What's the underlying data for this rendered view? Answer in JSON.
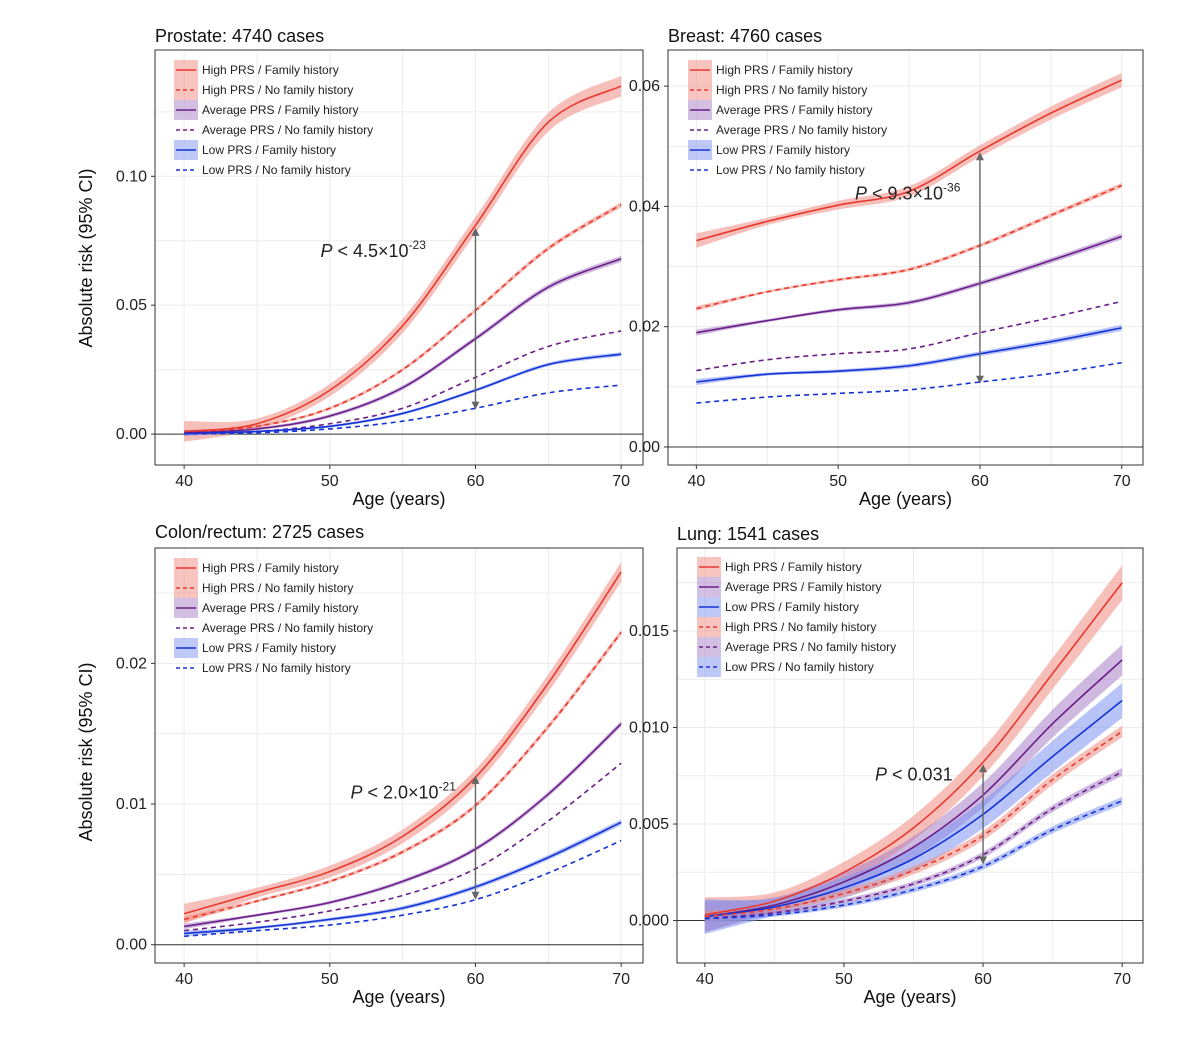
{
  "figure": {
    "ylabel": "Absolute risk (95% CI)",
    "xlabel": "Age (years)"
  },
  "colors": {
    "high": "#e8392f",
    "average": "#6b1e87",
    "low": "#1433d6",
    "high_band": "#f08a80",
    "average_band": "#a780c6",
    "low_band": "#7d94f2",
    "arrow": "#666666",
    "grid": "#ececec"
  },
  "chart_data": [
    {
      "type": "line",
      "title": "Prostate: 4740 cases",
      "xlabel": "Age (years)",
      "ylabel": "Absolute risk (95% CI)",
      "xlim": [
        38,
        71.5
      ],
      "ylim": [
        -0.012,
        0.149
      ],
      "xticks": [
        "40",
        "50",
        "60",
        "70"
      ],
      "yticks": [
        "0.00",
        "0.05",
        "0.10"
      ],
      "legend": [
        "High PRS / Family history",
        "High PRS / No family history",
        "Average PRS / Family history",
        "Average PRS / No family history",
        "Low PRS / Family history",
        "Low PRS / No family history"
      ],
      "annotation": {
        "text": "P < 4.5×10",
        "exp": "-23",
        "x": 60,
        "y_top": 0.08,
        "y_bottom": 0.0095
      },
      "x": [
        40,
        45,
        50,
        55,
        60,
        65,
        70
      ],
      "series": [
        {
          "name": "High PRS / Family history",
          "group": "high",
          "dash": false,
          "band": 0.004,
          "values": [
            0.001,
            0.004,
            0.017,
            0.042,
            0.081,
            0.121,
            0.135
          ]
        },
        {
          "name": "High PRS / No family history",
          "group": "high",
          "dash": true,
          "band": 0.001,
          "values": [
            0.0005,
            0.003,
            0.01,
            0.025,
            0.048,
            0.072,
            0.089
          ]
        },
        {
          "name": "Average PRS / Family history",
          "group": "average",
          "dash": false,
          "band": 0.0012,
          "values": [
            0.0004,
            0.002,
            0.007,
            0.018,
            0.037,
            0.057,
            0.068
          ]
        },
        {
          "name": "Average PRS / No family history",
          "group": "average",
          "dash": true,
          "band": 0,
          "values": [
            0.0003,
            0.001,
            0.004,
            0.01,
            0.022,
            0.034,
            0.04
          ]
        },
        {
          "name": "Low PRS / Family history",
          "group": "low",
          "dash": false,
          "band": 0.0008,
          "values": [
            0.0002,
            0.001,
            0.003,
            0.008,
            0.017,
            0.027,
            0.031
          ]
        },
        {
          "name": "Low PRS / No family history",
          "group": "low",
          "dash": true,
          "band": 0,
          "values": [
            0.0001,
            0.0005,
            0.002,
            0.005,
            0.01,
            0.016,
            0.019
          ]
        }
      ]
    },
    {
      "type": "line",
      "title": "Breast: 4760 cases",
      "xlabel": "Age (years)",
      "ylabel": "",
      "xlim": [
        38,
        71.5
      ],
      "ylim": [
        -0.003,
        0.066
      ],
      "xticks": [
        "40",
        "50",
        "60",
        "70"
      ],
      "yticks": [
        "0.00",
        "0.02",
        "0.04",
        "0.06"
      ],
      "legend": [
        "High PRS / Family history",
        "High PRS / No family history",
        "Average PRS / Family history",
        "Average PRS / No family history",
        "Low PRS / Family history",
        "Low PRS / No family history"
      ],
      "annotation": {
        "text": "P < 9.3×10",
        "exp": "-36",
        "x": 60,
        "y_top": 0.049,
        "y_bottom": 0.0105
      },
      "x": [
        40,
        45,
        50,
        55,
        60,
        65,
        70
      ],
      "series": [
        {
          "name": "High PRS / Family history",
          "group": "high",
          "dash": false,
          "band": 0.0012,
          "values": [
            0.0343,
            0.0375,
            0.0402,
            0.0425,
            0.0492,
            0.0555,
            0.061
          ]
        },
        {
          "name": "High PRS / No family history",
          "group": "high",
          "dash": true,
          "band": 0.0004,
          "values": [
            0.023,
            0.0258,
            0.0278,
            0.0295,
            0.0335,
            0.0385,
            0.0435
          ]
        },
        {
          "name": "Average PRS / Family history",
          "group": "average",
          "dash": false,
          "band": 0.0005,
          "values": [
            0.019,
            0.021,
            0.0228,
            0.024,
            0.0272,
            0.031,
            0.035
          ]
        },
        {
          "name": "Average PRS / No family history",
          "group": "average",
          "dash": true,
          "band": 0,
          "values": [
            0.0127,
            0.0145,
            0.0155,
            0.0163,
            0.019,
            0.0215,
            0.0242
          ]
        },
        {
          "name": "Low PRS / Family history",
          "group": "low",
          "dash": false,
          "band": 0.0005,
          "values": [
            0.0108,
            0.0121,
            0.0126,
            0.0135,
            0.0155,
            0.0175,
            0.0198
          ]
        },
        {
          "name": "Low PRS / No family history",
          "group": "low",
          "dash": true,
          "band": 0,
          "values": [
            0.0073,
            0.0083,
            0.0089,
            0.0095,
            0.0108,
            0.0122,
            0.014
          ]
        }
      ]
    },
    {
      "type": "line",
      "title": "Colon/rectum: 2725 cases",
      "xlabel": "Age (years)",
      "ylabel": "Absolute risk (95% CI)",
      "xlim": [
        38,
        71.5
      ],
      "ylim": [
        -0.0013,
        0.0282
      ],
      "xticks": [
        "40",
        "50",
        "60",
        "70"
      ],
      "yticks": [
        "0.00",
        "0.01",
        "0.02"
      ],
      "legend": [
        "High PRS / Family history",
        "High PRS / No family history",
        "Average PRS / Family history",
        "Average PRS / No family history",
        "Low PRS / Family history",
        "Low PRS / No family history"
      ],
      "annotation": {
        "text": "P < 2.0×10",
        "exp": "-21",
        "x": 60,
        "y_top": 0.012,
        "y_bottom": 0.0032
      },
      "x": [
        40,
        45,
        50,
        55,
        60,
        65,
        70
      ],
      "series": [
        {
          "name": "High PRS / Family history",
          "group": "high",
          "dash": false,
          "band": 0.0007,
          "values": [
            0.0022,
            0.0037,
            0.0052,
            0.0077,
            0.0119,
            0.0186,
            0.0265
          ]
        },
        {
          "name": "High PRS / No family history",
          "group": "high",
          "dash": true,
          "band": 0.0002,
          "values": [
            0.0018,
            0.0031,
            0.0045,
            0.0066,
            0.0099,
            0.0155,
            0.0222
          ]
        },
        {
          "name": "Average PRS / Family history",
          "group": "average",
          "dash": false,
          "band": 0.0002,
          "values": [
            0.0013,
            0.0021,
            0.003,
            0.0045,
            0.0068,
            0.0107,
            0.0157
          ]
        },
        {
          "name": "Average PRS / No family history",
          "group": "average",
          "dash": true,
          "band": 0,
          "values": [
            0.001,
            0.0016,
            0.0024,
            0.0035,
            0.0054,
            0.0088,
            0.0129
          ]
        },
        {
          "name": "Low PRS / Family history",
          "group": "low",
          "dash": false,
          "band": 0.0002,
          "values": [
            0.0008,
            0.0012,
            0.0018,
            0.0026,
            0.0041,
            0.0062,
            0.0087
          ]
        },
        {
          "name": "Low PRS / No family history",
          "group": "low",
          "dash": true,
          "band": 0,
          "values": [
            0.0006,
            0.001,
            0.0014,
            0.0021,
            0.0032,
            0.0051,
            0.0074
          ]
        }
      ]
    },
    {
      "type": "line",
      "title": "Lung: 1541 cases",
      "xlabel": "Age (years)",
      "ylabel": "",
      "xlim": [
        38,
        71.5
      ],
      "ylim": [
        -0.0022,
        0.0193
      ],
      "xticks": [
        "40",
        "50",
        "60",
        "70"
      ],
      "yticks": [
        "0.000",
        "0.005",
        "0.010",
        "0.015"
      ],
      "legend": [
        "High PRS / Family history",
        "Average PRS / Family history",
        "Low PRS / Family history",
        "High PRS / No family history",
        "Average PRS / No family history",
        "Low PRS / No family history"
      ],
      "annotation": {
        "text": "P < 0.031",
        "exp": "",
        "x": 60,
        "y_top": 0.0081,
        "y_bottom": 0.0029
      },
      "x": [
        40,
        45,
        50,
        55,
        60,
        65,
        70
      ],
      "series": [
        {
          "name": "High PRS / Family history",
          "group": "high",
          "dash": false,
          "band": 0.0009,
          "values": [
            0.0003,
            0.001,
            0.0025,
            0.0048,
            0.0082,
            0.0128,
            0.0175
          ]
        },
        {
          "name": "Average PRS / Family history",
          "group": "average",
          "dash": false,
          "band": 0.0008,
          "values": [
            0.0002,
            0.0008,
            0.002,
            0.0038,
            0.0065,
            0.0102,
            0.0135
          ]
        },
        {
          "name": "Low PRS / Family history",
          "group": "low",
          "dash": false,
          "band": 0.0009,
          "values": [
            0.0002,
            0.0007,
            0.0017,
            0.0032,
            0.0055,
            0.0085,
            0.0114
          ]
        },
        {
          "name": "High PRS / No family history",
          "group": "high",
          "dash": true,
          "band": 0.0003,
          "values": [
            0.0002,
            0.0006,
            0.0014,
            0.0026,
            0.0044,
            0.0073,
            0.0098
          ]
        },
        {
          "name": "Average PRS / No family history",
          "group": "average",
          "dash": true,
          "band": 0.0002,
          "values": [
            0.0001,
            0.0004,
            0.001,
            0.0019,
            0.0034,
            0.0058,
            0.0077
          ]
        },
        {
          "name": "Low PRS / No family history",
          "group": "low",
          "dash": true,
          "band": 0.0002,
          "values": [
            0.0001,
            0.0003,
            0.0008,
            0.0016,
            0.0028,
            0.0047,
            0.0062
          ]
        }
      ]
    }
  ]
}
